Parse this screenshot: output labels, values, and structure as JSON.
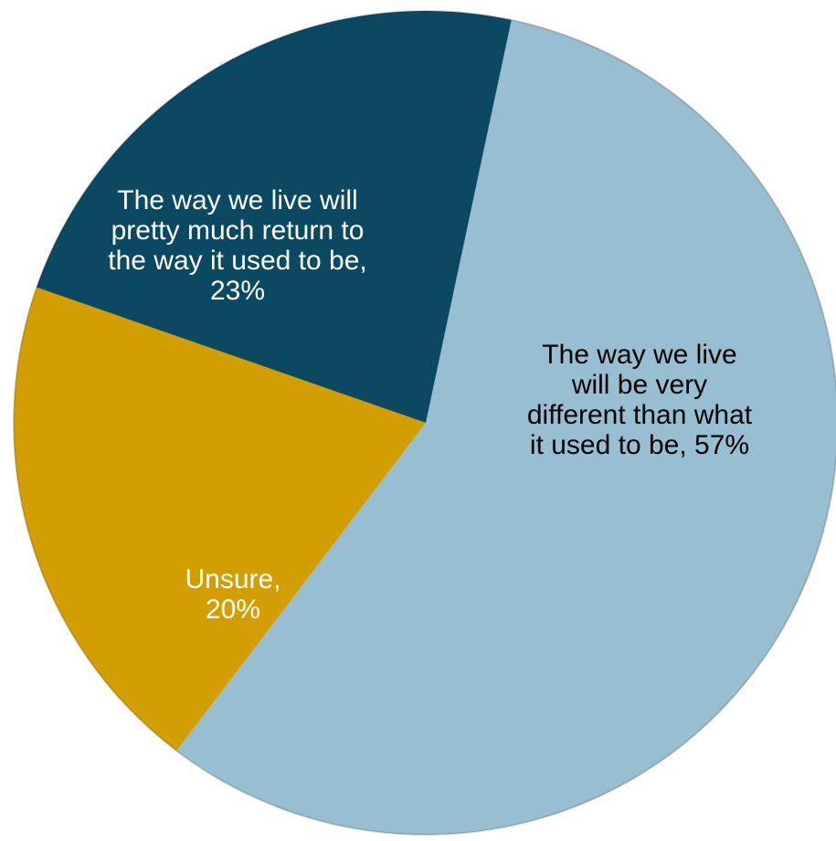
{
  "chart_data": {
    "type": "pie",
    "start_angle_deg": 12,
    "direction": "clockwise",
    "legend": "none",
    "slices": [
      {
        "label": "The way we live will be very different than what it used to be, 57%",
        "category": "The way we live will be very different than what it used to be",
        "value": 57,
        "color": "#98BED1"
      },
      {
        "label": "Unsure,\n20%",
        "category": "Unsure",
        "value": 20,
        "color": "#D39E00"
      },
      {
        "label": "The way we live will pretty much return to the way it used to be,\n23%",
        "category": "The way we live will pretty much return to the way it used to be",
        "value": 23,
        "color": "#0B4963"
      }
    ]
  }
}
